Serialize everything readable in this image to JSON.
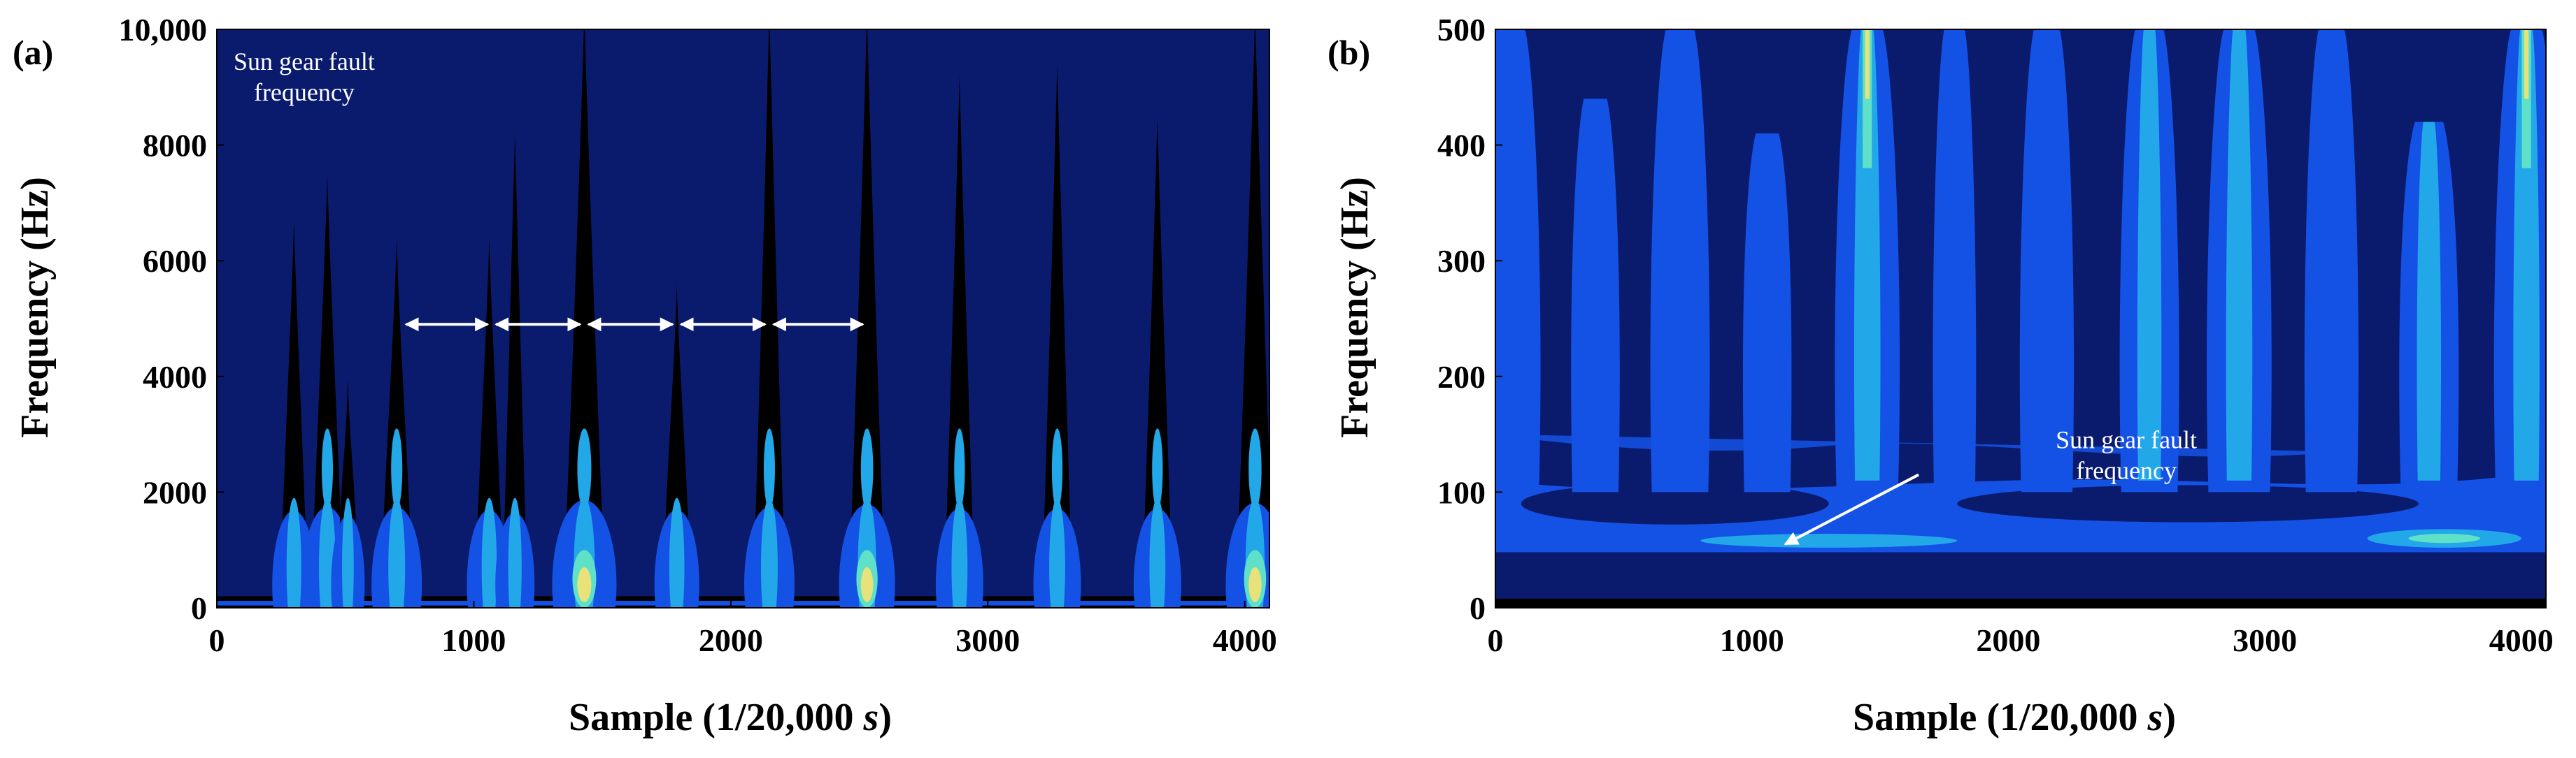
{
  "chart_data": [
    {
      "panel_label": "(a)",
      "type": "heatmap",
      "plot_kind": "time-frequency contour",
      "xlabel_main": "Sample (1/20,000 ",
      "xlabel_unit": "s",
      "xlabel_end": ")",
      "ylabel": "Frequency (Hz)",
      "xlim": [
        0,
        4096
      ],
      "ylim": [
        0,
        10000
      ],
      "xticks": [
        0,
        1000,
        2000,
        3000,
        4000
      ],
      "yticks": [
        0,
        2000,
        4000,
        6000,
        8000,
        10000
      ],
      "xtick_labels": [
        "0",
        "1000",
        "2000",
        "3000",
        "4000"
      ],
      "ytick_labels": [
        "0",
        "2000",
        "4000",
        "6000",
        "8000",
        "10,000"
      ],
      "background_color": "#0a1b6e",
      "contour_colors": [
        "#000000",
        "#1452e6",
        "#22a7e8",
        "#5fe0c8",
        "#e8e27a"
      ],
      "annotation": {
        "line1": "Sun gear fault",
        "line2": "frequency",
        "x": 340,
        "y": 9300
      },
      "impulses": [
        {
          "x": 300,
          "top": 6700,
          "strength": 1.5
        },
        {
          "x": 430,
          "top": 7500,
          "strength": 2.0
        },
        {
          "x": 510,
          "top": 4000,
          "strength": 0.8
        },
        {
          "x": 700,
          "top": 6400,
          "strength": 2.0
        },
        {
          "x": 1060,
          "top": 6400,
          "strength": 1.6
        },
        {
          "x": 1160,
          "top": 8200,
          "strength": 1.2
        },
        {
          "x": 1430,
          "top": 10300,
          "strength": 3.0
        },
        {
          "x": 1790,
          "top": 5600,
          "strength": 1.6
        },
        {
          "x": 2150,
          "top": 10300,
          "strength": 2.0
        },
        {
          "x": 2530,
          "top": 10300,
          "strength": 2.4
        },
        {
          "x": 2890,
          "top": 9200,
          "strength": 1.8
        },
        {
          "x": 3270,
          "top": 9400,
          "strength": 1.8
        },
        {
          "x": 3660,
          "top": 8500,
          "strength": 1.8
        },
        {
          "x": 4040,
          "top": 10300,
          "strength": 2.6
        }
      ],
      "period_arrows": {
        "y": 4900,
        "segments": [
          [
            720,
            1070
          ],
          [
            1070,
            1430
          ],
          [
            1430,
            1790
          ],
          [
            1790,
            2150
          ],
          [
            2150,
            2530
          ]
        ]
      }
    },
    {
      "panel_label": "(b)",
      "type": "heatmap",
      "plot_kind": "time-frequency contour (zoom)",
      "xlabel_main": "Sample (1/20,000 ",
      "xlabel_unit": "s",
      "xlabel_end": ")",
      "ylabel": "Frequency (Hz)",
      "xlim": [
        0,
        4096
      ],
      "ylim": [
        0,
        500
      ],
      "xticks": [
        0,
        1000,
        2000,
        3000,
        4000
      ],
      "yticks": [
        0,
        100,
        200,
        300,
        400,
        500
      ],
      "xtick_labels": [
        "0",
        "1000",
        "2000",
        "3000",
        "4000"
      ],
      "ytick_labels": [
        "0",
        "100",
        "200",
        "300",
        "400",
        "500"
      ],
      "background_color": "#0a1b6e",
      "contour_colors": [
        "#1452e6",
        "#0f3cc8",
        "#22a7e8",
        "#5fe0c8",
        "#e8e27a"
      ],
      "annotation": {
        "line1": "Sun gear fault",
        "line2": "frequency",
        "x": 2460,
        "y": 120
      },
      "annotation_arrow": {
        "from": [
          1650,
          115
        ],
        "to": [
          1130,
          55
        ]
      },
      "fault_band": {
        "y_low": 48,
        "y_high": 68
      },
      "columns": [
        {
          "x": 60,
          "top": 500,
          "w": 110,
          "strength": 1
        },
        {
          "x": 390,
          "top": 440,
          "w": 90,
          "strength": 1
        },
        {
          "x": 720,
          "top": 500,
          "w": 110,
          "strength": 1
        },
        {
          "x": 1060,
          "top": 410,
          "w": 90,
          "strength": 1
        },
        {
          "x": 1450,
          "top": 500,
          "w": 120,
          "strength": 3
        },
        {
          "x": 1790,
          "top": 500,
          "w": 80,
          "strength": 1
        },
        {
          "x": 2150,
          "top": 500,
          "w": 100,
          "strength": 1
        },
        {
          "x": 2550,
          "top": 500,
          "w": 110,
          "strength": 2
        },
        {
          "x": 2900,
          "top": 500,
          "w": 120,
          "strength": 2
        },
        {
          "x": 3260,
          "top": 500,
          "w": 100,
          "strength": 1
        },
        {
          "x": 3640,
          "top": 420,
          "w": 110,
          "strength": 2
        },
        {
          "x": 4020,
          "top": 500,
          "w": 120,
          "strength": 3
        }
      ]
    }
  ]
}
